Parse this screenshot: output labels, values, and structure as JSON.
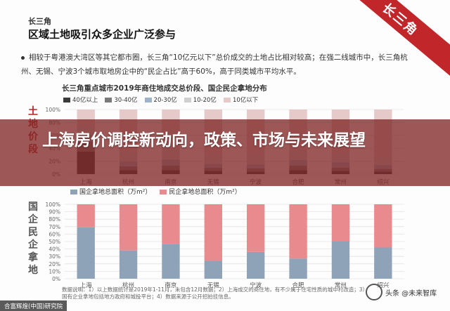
{
  "slide": {
    "kicker": "长三角",
    "title": "区域土地吸引众多企业广泛参与",
    "bullet": "相较于粤港澳大湾区等其它都市圈，长三角“10亿元以下”总价成交的土地占比相对较高；在强二线城市中，长三角杭州、无锡、宁波3个城市取地房企中的“民企占比”高于60%，高于同类城市平均水平。",
    "corner_band": "长三角",
    "vertical_label_top": "土地价段",
    "vertical_label_bottom": "国企民企拿地",
    "notes": "数据说明：1）以上数据统计是2019年1-11月，未包含12月数据；2）上海成交的商住地，有不少属于住宅性质的城中村改造；3）国有企业拿地包括地方政府和城投平台；4）数据来源于公开招拍挂信息。",
    "footer_logo": "合富辉煌(中国)研究院",
    "watermark": "头条 @未来智库",
    "accent_color": "#c0262a"
  },
  "overlay": {
    "title": "上海房价调控新动向，政策、市场与未来展望"
  },
  "chart_data": [
    {
      "type": "bar",
      "title": "长三角重点城市2019年商住地成交总价段、国企民企拿地分布",
      "categories": [
        "上海",
        "杭州",
        "南京",
        "无锡",
        "宁波",
        "合肥",
        "常州",
        "绍兴"
      ],
      "series": [
        {
          "name": "40亿以上",
          "color": "#3a3a3a",
          "values": [
            0.35,
            0.06,
            0.06,
            0.05,
            0.04,
            0.06,
            0.05,
            0.04
          ]
        },
        {
          "name": "30-40亿",
          "color": "#7a7a7a",
          "values": [
            0.15,
            0.06,
            0.07,
            0.05,
            0.05,
            0.07,
            0.05,
            0.04
          ]
        },
        {
          "name": "20-30亿",
          "color": "#9db4c8",
          "values": [
            0.1,
            0.08,
            0.1,
            0.06,
            0.06,
            0.09,
            0.08,
            0.06
          ]
        },
        {
          "name": "10-20亿",
          "color": "#cfcfcf",
          "values": [
            0.15,
            0.15,
            0.17,
            0.14,
            0.15,
            0.16,
            0.14,
            0.12
          ]
        },
        {
          "name": "10亿以下",
          "color": "#e6c9c9",
          "values": [
            0.25,
            0.65,
            0.6,
            0.7,
            0.7,
            0.62,
            0.68,
            0.74
          ]
        }
      ],
      "yticks": [
        "0%",
        "20%",
        "40%",
        "60%",
        "80%",
        "100%"
      ],
      "ylim": [
        0,
        1
      ]
    },
    {
      "type": "bar",
      "categories": [
        "上海",
        "杭州",
        "南京",
        "无锡",
        "宁波",
        "合肥",
        "常州",
        "绍兴"
      ],
      "series": [
        {
          "name": "国企拿地总面积（万m²）",
          "color": "#8fa3b8",
          "values": [
            0.69,
            0.38,
            0.47,
            0.24,
            0.36,
            0.27,
            0.5,
            0.42
          ]
        },
        {
          "name": "民企拿地总面积（万m²）",
          "color": "#e88a8e",
          "values": [
            0.31,
            0.62,
            0.53,
            0.76,
            0.64,
            0.73,
            0.5,
            0.58
          ]
        }
      ],
      "yticks": [
        "0%",
        "10%",
        "20%",
        "30%",
        "40%",
        "50%",
        "60%",
        "70%",
        "80%",
        "90%",
        "100%"
      ],
      "ylim": [
        0,
        1
      ]
    }
  ]
}
